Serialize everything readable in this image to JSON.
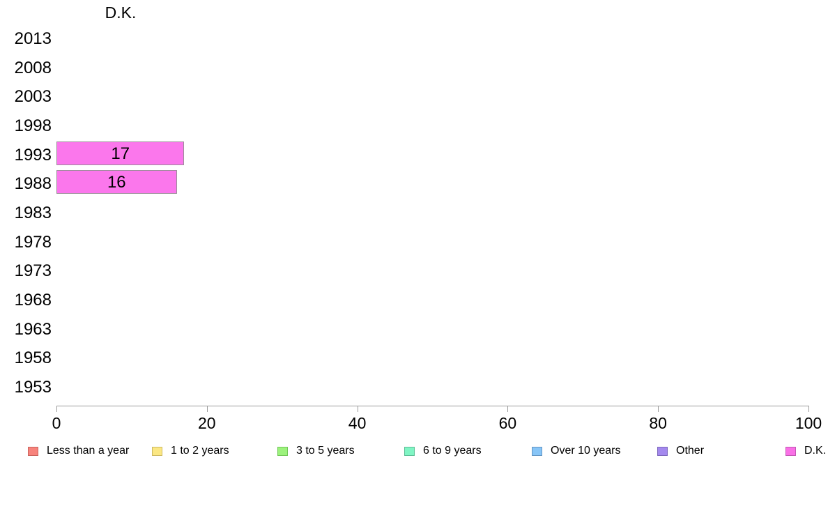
{
  "page": {
    "background": "#ffffff",
    "text_color": "#000000",
    "axis_color": "#9a9a9a"
  },
  "chart_data": {
    "type": "bar",
    "orientation": "horizontal",
    "title": "D.K.",
    "categories": [
      "2013",
      "2008",
      "2003",
      "1998",
      "1993",
      "1988",
      "1983",
      "1978",
      "1973",
      "1968",
      "1963",
      "1958",
      "1953"
    ],
    "series": [
      {
        "name": "D.K.",
        "color": "#fb77ec",
        "border_color": "#9c8d99",
        "values": [
          null,
          null,
          null,
          null,
          17,
          16,
          null,
          null,
          null,
          null,
          null,
          null,
          null
        ]
      }
    ],
    "value_labels_shown": [
      "17",
      "16"
    ],
    "xlabel": "",
    "ylabel": "",
    "xlim": [
      0,
      100
    ],
    "x_ticks": [
      "0",
      "20",
      "40",
      "60",
      "80",
      "100"
    ],
    "grid": false,
    "legend_position": "bottom",
    "legend": [
      {
        "label": "Less than a year",
        "color": "#f7837c",
        "border_color": "#c9625b"
      },
      {
        "label": "1 to 2 years",
        "color": "#fbe783",
        "border_color": "#cdb961"
      },
      {
        "label": "3 to 5 years",
        "color": "#9cf27d",
        "border_color": "#71c757"
      },
      {
        "label": "6 to 9 years",
        "color": "#80f5c4",
        "border_color": "#5cbf96"
      },
      {
        "label": "Over 10 years",
        "color": "#87c5f7",
        "border_color": "#6295c4"
      },
      {
        "label": "Other",
        "color": "#a489ee",
        "border_color": "#7c67bd"
      },
      {
        "label": "D.K.",
        "color": "#f970e6",
        "border_color": "#c257b4"
      }
    ]
  }
}
